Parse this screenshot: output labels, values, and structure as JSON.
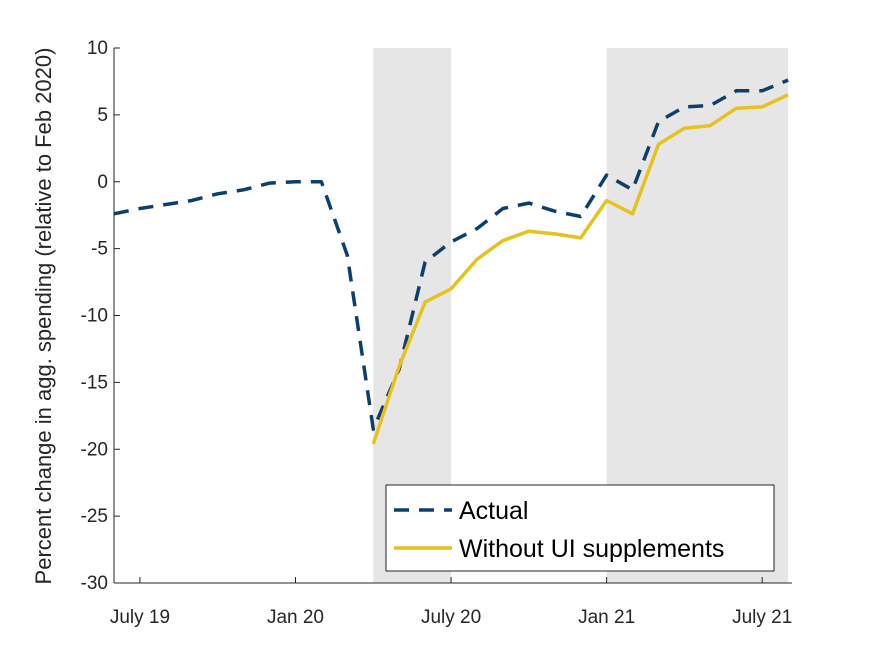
{
  "chart_data": {
    "type": "line",
    "title": "",
    "xlabel": "",
    "ylabel": "Percent change in agg. spending (relative to Feb 2020)",
    "ylim": [
      -30,
      10
    ],
    "xlim": [
      "2019-06",
      "2021-07"
    ],
    "x_ticks": [
      {
        "label": "July 19",
        "month": "2019-07"
      },
      {
        "label": "Jan 20",
        "month": "2020-01"
      },
      {
        "label": "July 20",
        "month": "2020-07"
      },
      {
        "label": "Jan 21",
        "month": "2021-01"
      },
      {
        "label": "July 21",
        "month": "2021-07"
      }
    ],
    "y_ticks": [
      10,
      5,
      0,
      -5,
      -10,
      -15,
      -20,
      -25,
      -30
    ],
    "shaded_periods": [
      {
        "start": "2020-04",
        "end": "2020-07"
      },
      {
        "start": "2021-01",
        "end": "2021-08"
      }
    ],
    "grid": false,
    "legend_position": "bottom-right",
    "series": [
      {
        "name": "Actual",
        "color": "#0d3f6e",
        "style": "dashed",
        "points": [
          {
            "x": "2019-06",
            "y": -2.4
          },
          {
            "x": "2019-07",
            "y": -2.0
          },
          {
            "x": "2019-08",
            "y": -1.7
          },
          {
            "x": "2019-09",
            "y": -1.4
          },
          {
            "x": "2019-10",
            "y": -0.9
          },
          {
            "x": "2019-11",
            "y": -0.6
          },
          {
            "x": "2019-12",
            "y": -0.1
          },
          {
            "x": "2020-01",
            "y": 0.0
          },
          {
            "x": "2020-02",
            "y": 0.0
          },
          {
            "x": "2020-03",
            "y": -5.5
          },
          {
            "x": "2020-04",
            "y": -18.5
          },
          {
            "x": "2020-05",
            "y": -14.0
          },
          {
            "x": "2020-06",
            "y": -6.0
          },
          {
            "x": "2020-07",
            "y": -4.5
          },
          {
            "x": "2020-08",
            "y": -3.5
          },
          {
            "x": "2020-09",
            "y": -2.0
          },
          {
            "x": "2020-10",
            "y": -1.6
          },
          {
            "x": "2020-11",
            "y": -2.2
          },
          {
            "x": "2020-12",
            "y": -2.6
          },
          {
            "x": "2021-01",
            "y": 0.5
          },
          {
            "x": "2021-02",
            "y": -0.6
          },
          {
            "x": "2021-03",
            "y": 4.5
          },
          {
            "x": "2021-04",
            "y": 5.6
          },
          {
            "x": "2021-05",
            "y": 5.7
          },
          {
            "x": "2021-06",
            "y": 6.8
          },
          {
            "x": "2021-07",
            "y": 6.8
          },
          {
            "x": "2021-08",
            "y": 7.6
          }
        ]
      },
      {
        "name": "Without UI supplements",
        "color": "#e6c21e",
        "style": "solid",
        "points": [
          {
            "x": "2020-04",
            "y": -19.6
          },
          {
            "x": "2020-05",
            "y": -13.8
          },
          {
            "x": "2020-06",
            "y": -9.0
          },
          {
            "x": "2020-07",
            "y": -8.0
          },
          {
            "x": "2020-08",
            "y": -5.8
          },
          {
            "x": "2020-09",
            "y": -4.4
          },
          {
            "x": "2020-10",
            "y": -3.7
          },
          {
            "x": "2020-11",
            "y": -3.9
          },
          {
            "x": "2020-12",
            "y": -4.2
          },
          {
            "x": "2021-01",
            "y": -1.4
          },
          {
            "x": "2021-02",
            "y": -2.4
          },
          {
            "x": "2021-03",
            "y": 2.8
          },
          {
            "x": "2021-04",
            "y": 4.0
          },
          {
            "x": "2021-05",
            "y": 4.2
          },
          {
            "x": "2021-06",
            "y": 5.5
          },
          {
            "x": "2021-07",
            "y": 5.6
          },
          {
            "x": "2021-08",
            "y": 6.5
          }
        ]
      }
    ]
  }
}
